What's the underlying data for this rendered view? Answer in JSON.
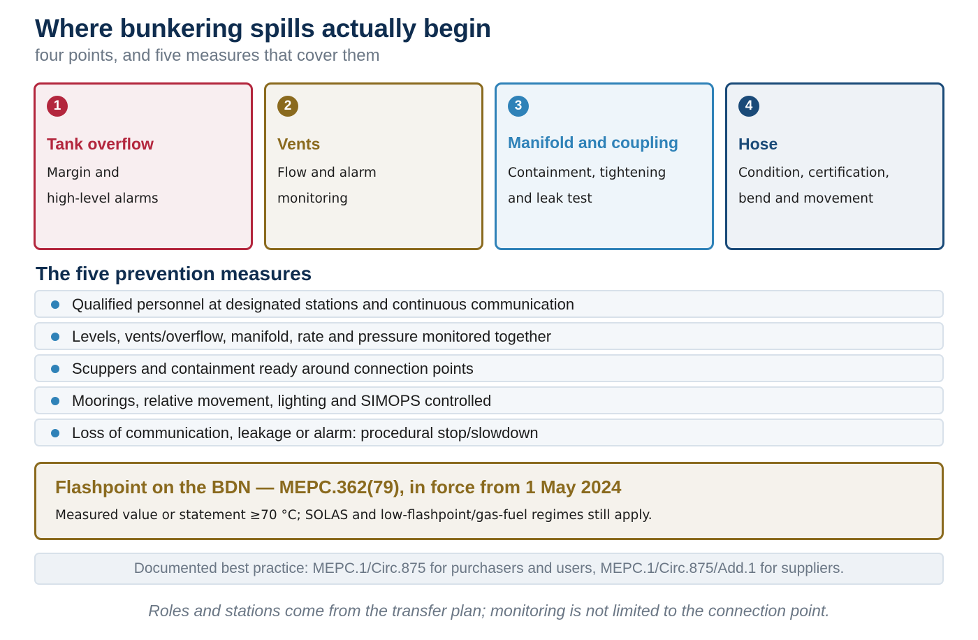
{
  "header": {
    "title": "Where bunkering spills actually begin",
    "subtitle": "four points, and five measures that cover them"
  },
  "points": [
    {
      "number": "1",
      "title": "Tank overflow",
      "line1": "Margin and",
      "line2": "high-level alarms",
      "color": "#b3263d"
    },
    {
      "number": "2",
      "title": "Vents",
      "line1": "Flow and alarm",
      "line2": "monitoring",
      "color": "#8a6a1e"
    },
    {
      "number": "3",
      "title": "Manifold and coupling",
      "line1": "Containment, tightening",
      "line2": "and leak test",
      "color": "#2f82b8"
    },
    {
      "number": "4",
      "title": "Hose",
      "line1": "Condition, certification,",
      "line2": "bend and movement",
      "color": "#1a4a78"
    }
  ],
  "measures": {
    "heading": "The five prevention measures",
    "items": [
      "Qualified personnel at designated stations and continuous communication",
      "Levels, vents/overflow, manifold, rate and pressure monitored together",
      "Scuppers and containment ready around connection points",
      "Moorings, relative movement, lighting and SIMOPS controlled",
      "Loss of communication, leakage or alarm: procedural stop/slowdown"
    ]
  },
  "callout": {
    "title": "Flashpoint on the BDN — MEPC.362(79), in force from 1 May 2024",
    "text": "Measured value or statement ≥70 °C; SOLAS and low-flashpoint/gas-fuel regimes still apply."
  },
  "note": "Documented best practice: MEPC.1/Circ.875 for purchasers and users, MEPC.1/Circ.875/Add.1 for suppliers.",
  "footer": "Roles and stations come from the transfer plan; monitoring is not limited to the connection point."
}
